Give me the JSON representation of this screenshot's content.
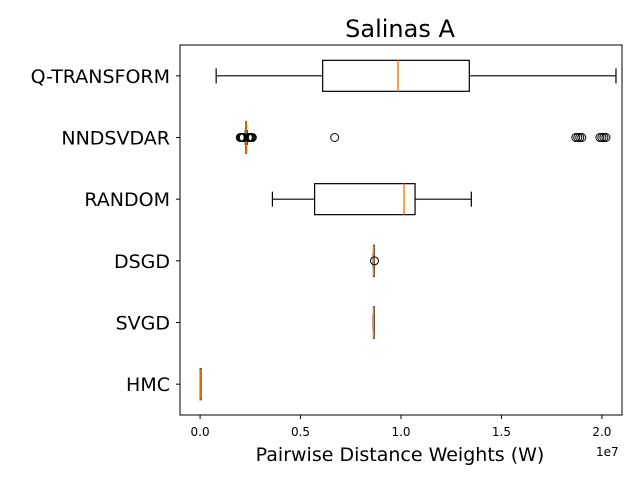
{
  "chart_data": {
    "type": "boxplot",
    "title": "Salinas A",
    "xlabel": "Pairwise Distance Weights (W)",
    "ylabel": "",
    "x_offset_label": "1e7",
    "xlim": [
      -0.1,
      2.1
    ],
    "xticks": [
      0.0,
      0.5,
      1.0,
      1.5,
      2.0
    ],
    "xtick_labels": [
      "0.0",
      "0.5",
      "1.0",
      "1.5",
      "2.0"
    ],
    "grid": false,
    "colors": {
      "median": "#ff7f0e",
      "box": "#000000",
      "background": "#ffffff"
    },
    "categories": [
      "Q-TRANSFORM",
      "NNDSVDAR",
      "RANDOM",
      "DSGD",
      "SVGD",
      "HMC"
    ],
    "boxes": [
      {
        "name": "Q-TRANSFORM",
        "whisker_low": 0.08,
        "q1": 0.61,
        "median": 0.985,
        "q3": 1.34,
        "whisker_high": 2.07,
        "fliers": []
      },
      {
        "name": "NNDSVDAR",
        "whisker_low": 0.225,
        "q1": 0.227,
        "median": 0.229,
        "q3": 0.231,
        "whisker_high": 0.234,
        "fliers": [
          0.2,
          0.205,
          0.21,
          0.215,
          0.24,
          0.245,
          0.25,
          0.255,
          0.26,
          0.67,
          1.87,
          1.88,
          1.89,
          1.9,
          1.99,
          2.0,
          2.01,
          2.02
        ]
      },
      {
        "name": "RANDOM",
        "whisker_low": 0.36,
        "q1": 0.57,
        "median": 1.015,
        "q3": 1.07,
        "whisker_high": 1.35,
        "fliers": []
      },
      {
        "name": "DSGD",
        "whisker_low": 0.862,
        "q1": 0.863,
        "median": 0.864,
        "q3": 0.865,
        "whisker_high": 0.866,
        "fliers": [
          0.868
        ]
      },
      {
        "name": "SVGD",
        "whisker_low": 0.862,
        "q1": 0.863,
        "median": 0.864,
        "q3": 0.865,
        "whisker_high": 0.866,
        "fliers": []
      },
      {
        "name": "HMC",
        "whisker_low": 0.0,
        "q1": 0.0,
        "median": 0.0,
        "q3": 0.0,
        "whisker_high": 0.0,
        "fliers": []
      }
    ]
  }
}
